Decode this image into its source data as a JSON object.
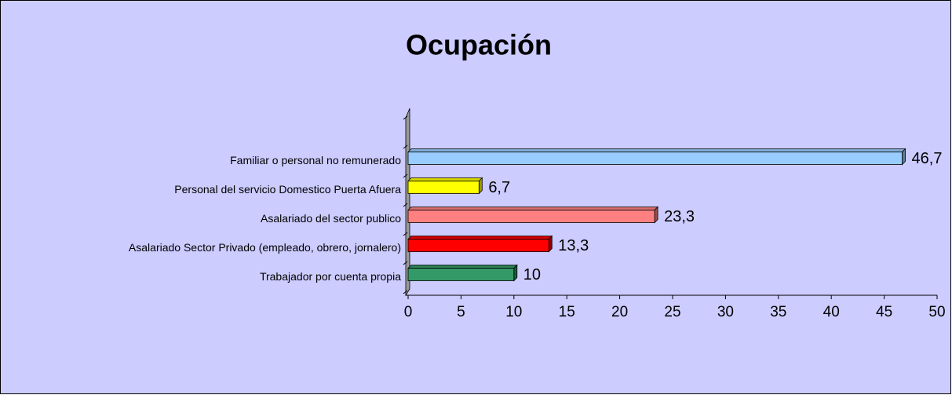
{
  "chart_data": {
    "type": "bar",
    "orientation": "horizontal",
    "title": "Ocupación",
    "categories": [
      "Trabajador por cuenta propia",
      "Asalariado Sector Privado (empleado, obrero, jornalero)",
      "Asalariado del sector publico",
      "Personal del servicio Domestico Puerta Afuera",
      "Familiar o personal no remunerado",
      null
    ],
    "values": [
      10,
      13.3,
      23.3,
      6.7,
      46.7,
      null
    ],
    "value_labels": [
      "10",
      "13,3",
      "23,3",
      "6,7",
      "46,7",
      null
    ],
    "colors": [
      "#339966",
      "#ff0000",
      "#ff8080",
      "#ffff00",
      "#99ccff",
      null
    ],
    "xlim": [
      0,
      50
    ],
    "xticks": [
      0,
      5,
      10,
      15,
      20,
      25,
      30,
      35,
      40,
      45,
      50
    ]
  }
}
